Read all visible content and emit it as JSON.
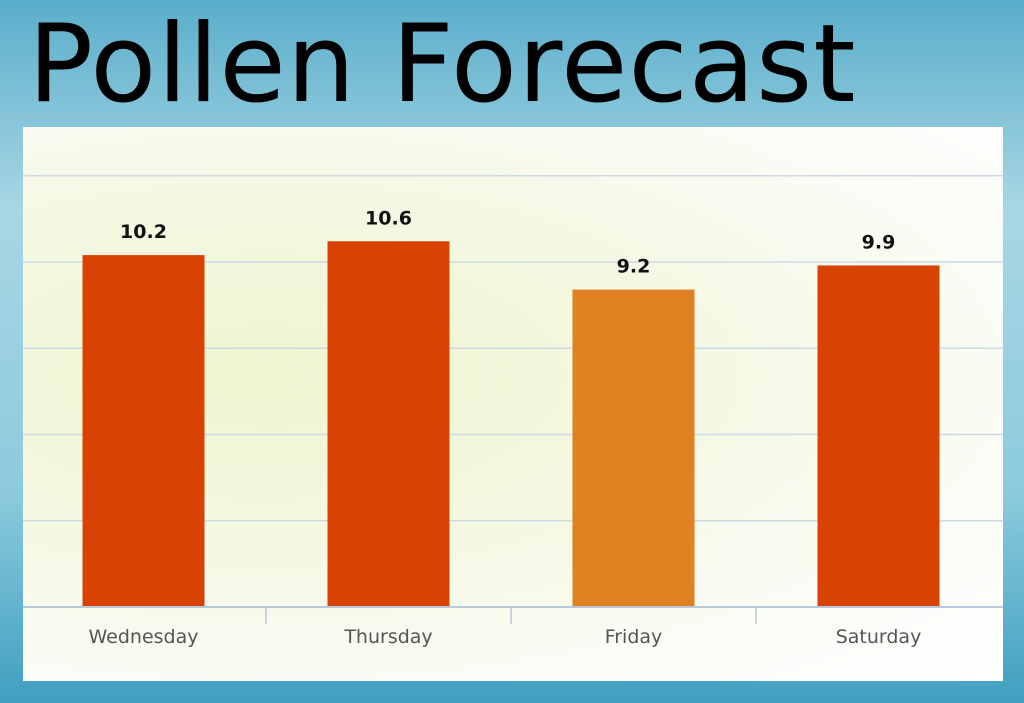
{
  "title": "Pollen Forecast",
  "chart_data": {
    "type": "bar",
    "categories": [
      "Wednesday",
      "Thursday",
      "Friday",
      "Saturday"
    ],
    "values": [
      10.2,
      10.6,
      9.2,
      9.9
    ],
    "value_labels": [
      "10.2",
      "10.6",
      "9.2",
      "9.9"
    ],
    "bar_colors": [
      "#d84303",
      "#d84303",
      "#e08020",
      "#d84303"
    ],
    "ylim": [
      0,
      12.5
    ],
    "grid": true,
    "gridline_color": "#cdd9e6",
    "axis_color": "#b8c8dc",
    "tick_label_color": "#555555",
    "value_label_color": "#111111"
  }
}
